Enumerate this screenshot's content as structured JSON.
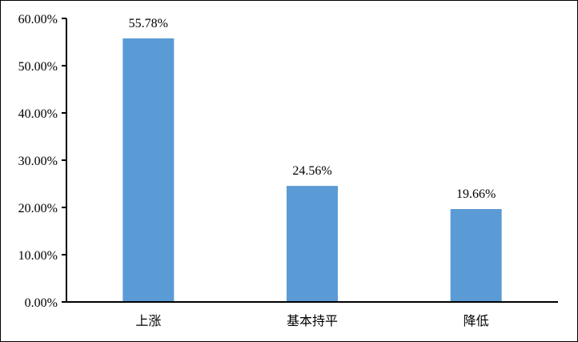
{
  "chart_data": {
    "type": "bar",
    "categories": [
      "上涨",
      "基本持平",
      "降低"
    ],
    "values": [
      55.78,
      24.56,
      19.66
    ],
    "data_labels": [
      "55.78%",
      "24.56%",
      "19.66%"
    ],
    "title": "",
    "xlabel": "",
    "ylabel": "",
    "ylim": [
      0,
      60
    ],
    "yticks": [
      0,
      10,
      20,
      30,
      40,
      50,
      60
    ],
    "ytick_labels": [
      "0.00%",
      "10.00%",
      "20.00%",
      "30.00%",
      "40.00%",
      "50.00%",
      "60.00%"
    ],
    "grid": false,
    "legend": "none",
    "bar_color": "#5b9bd5"
  }
}
